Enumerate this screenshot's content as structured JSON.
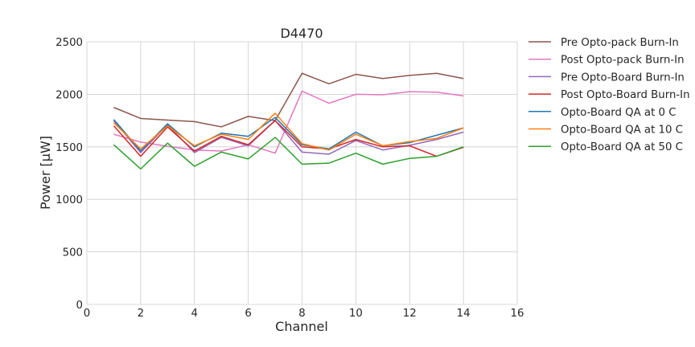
{
  "chart_data": {
    "type": "line",
    "title": "D4470",
    "xlabel": "Channel",
    "ylabel": "Power [μW]",
    "xlim": [
      0,
      16
    ],
    "ylim": [
      0,
      2500
    ],
    "xticks": [
      0,
      2,
      4,
      6,
      8,
      10,
      12,
      14,
      16
    ],
    "yticks": [
      0,
      500,
      1000,
      1500,
      2000,
      2500
    ],
    "grid": true,
    "legend_position": "outside-right",
    "x": [
      1,
      2,
      3,
      4,
      5,
      6,
      7,
      8,
      9,
      10,
      11,
      12,
      13,
      14
    ],
    "series": [
      {
        "name": "Pre Opto-pack Burn-In",
        "color": "#8c564b",
        "values": [
          1875,
          1770,
          1755,
          1740,
          1690,
          1790,
          1750,
          2200,
          2100,
          2190,
          2150,
          2180,
          2200,
          2150
        ]
      },
      {
        "name": "Post Opto-pack Burn-In",
        "color": "#e377c2",
        "values": [
          1620,
          1545,
          1505,
          1470,
          1460,
          1520,
          1440,
          2030,
          1915,
          2000,
          1995,
          2025,
          2020,
          1985
        ]
      },
      {
        "name": "Pre Opto-Board Burn-In",
        "color": "#9467bd",
        "values": [
          1750,
          1445,
          1710,
          1445,
          1590,
          1510,
          1750,
          1450,
          1430,
          1560,
          1470,
          1515,
          1570,
          1640
        ]
      },
      {
        "name": "Post Opto-Board Burn-In",
        "color": "#d62728",
        "values": [
          1700,
          1410,
          1690,
          1460,
          1600,
          1520,
          1750,
          1500,
          1480,
          1570,
          1500,
          1510,
          1410,
          1495
        ]
      },
      {
        "name": "Opto-Board QA at 0 C",
        "color": "#1f77b4",
        "values": [
          1760,
          1460,
          1720,
          1500,
          1630,
          1600,
          1780,
          1520,
          1480,
          1640,
          1510,
          1540,
          1610,
          1680
        ]
      },
      {
        "name": "Opto-Board QA at 10 C",
        "color": "#ff7f0e",
        "values": [
          1730,
          1480,
          1700,
          1510,
          1620,
          1570,
          1820,
          1530,
          1470,
          1620,
          1510,
          1550,
          1580,
          1680
        ]
      },
      {
        "name": "Opto-Board QA at 50 C",
        "color": "#2ca02c",
        "values": [
          1520,
          1290,
          1535,
          1315,
          1450,
          1385,
          1590,
          1335,
          1345,
          1440,
          1335,
          1390,
          1410,
          1500
        ]
      }
    ]
  }
}
